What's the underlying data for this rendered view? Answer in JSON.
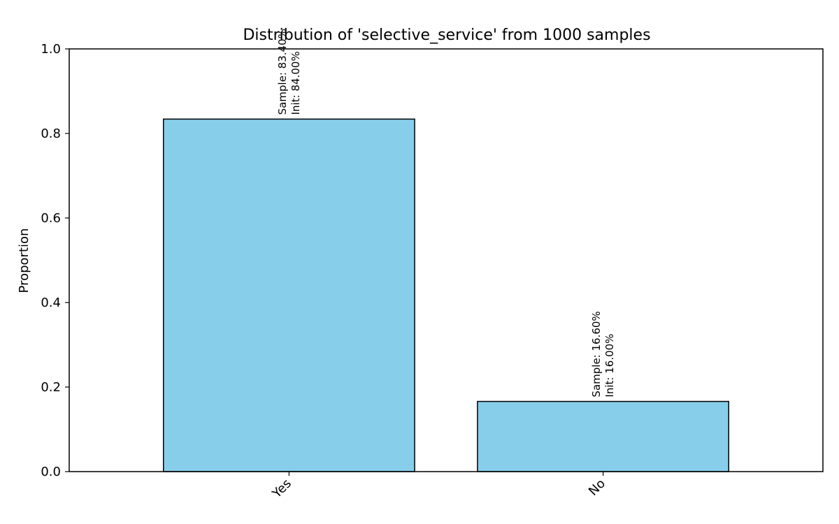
{
  "chart_data": {
    "type": "bar",
    "title": "Distribution of 'selective_service' from 1000 samples",
    "xlabel": "",
    "ylabel": "Proportion",
    "categories": [
      "Yes",
      "No"
    ],
    "values": [
      0.834,
      0.166
    ],
    "data_labels": [
      [
        "Sample: 83.40%",
        "Init: 84.00%"
      ],
      [
        "Sample: 16.60%",
        "Init: 16.00%"
      ]
    ],
    "ylim": [
      0,
      1.0
    ],
    "yticks": [
      0.0,
      0.2,
      0.4,
      0.6,
      0.8,
      1.0
    ],
    "ytick_labels": [
      "0.0",
      "0.2",
      "0.4",
      "0.6",
      "0.8",
      "1.0"
    ],
    "grid": false,
    "bar_color": "#87CEEB",
    "edge_color": "#000000"
  }
}
